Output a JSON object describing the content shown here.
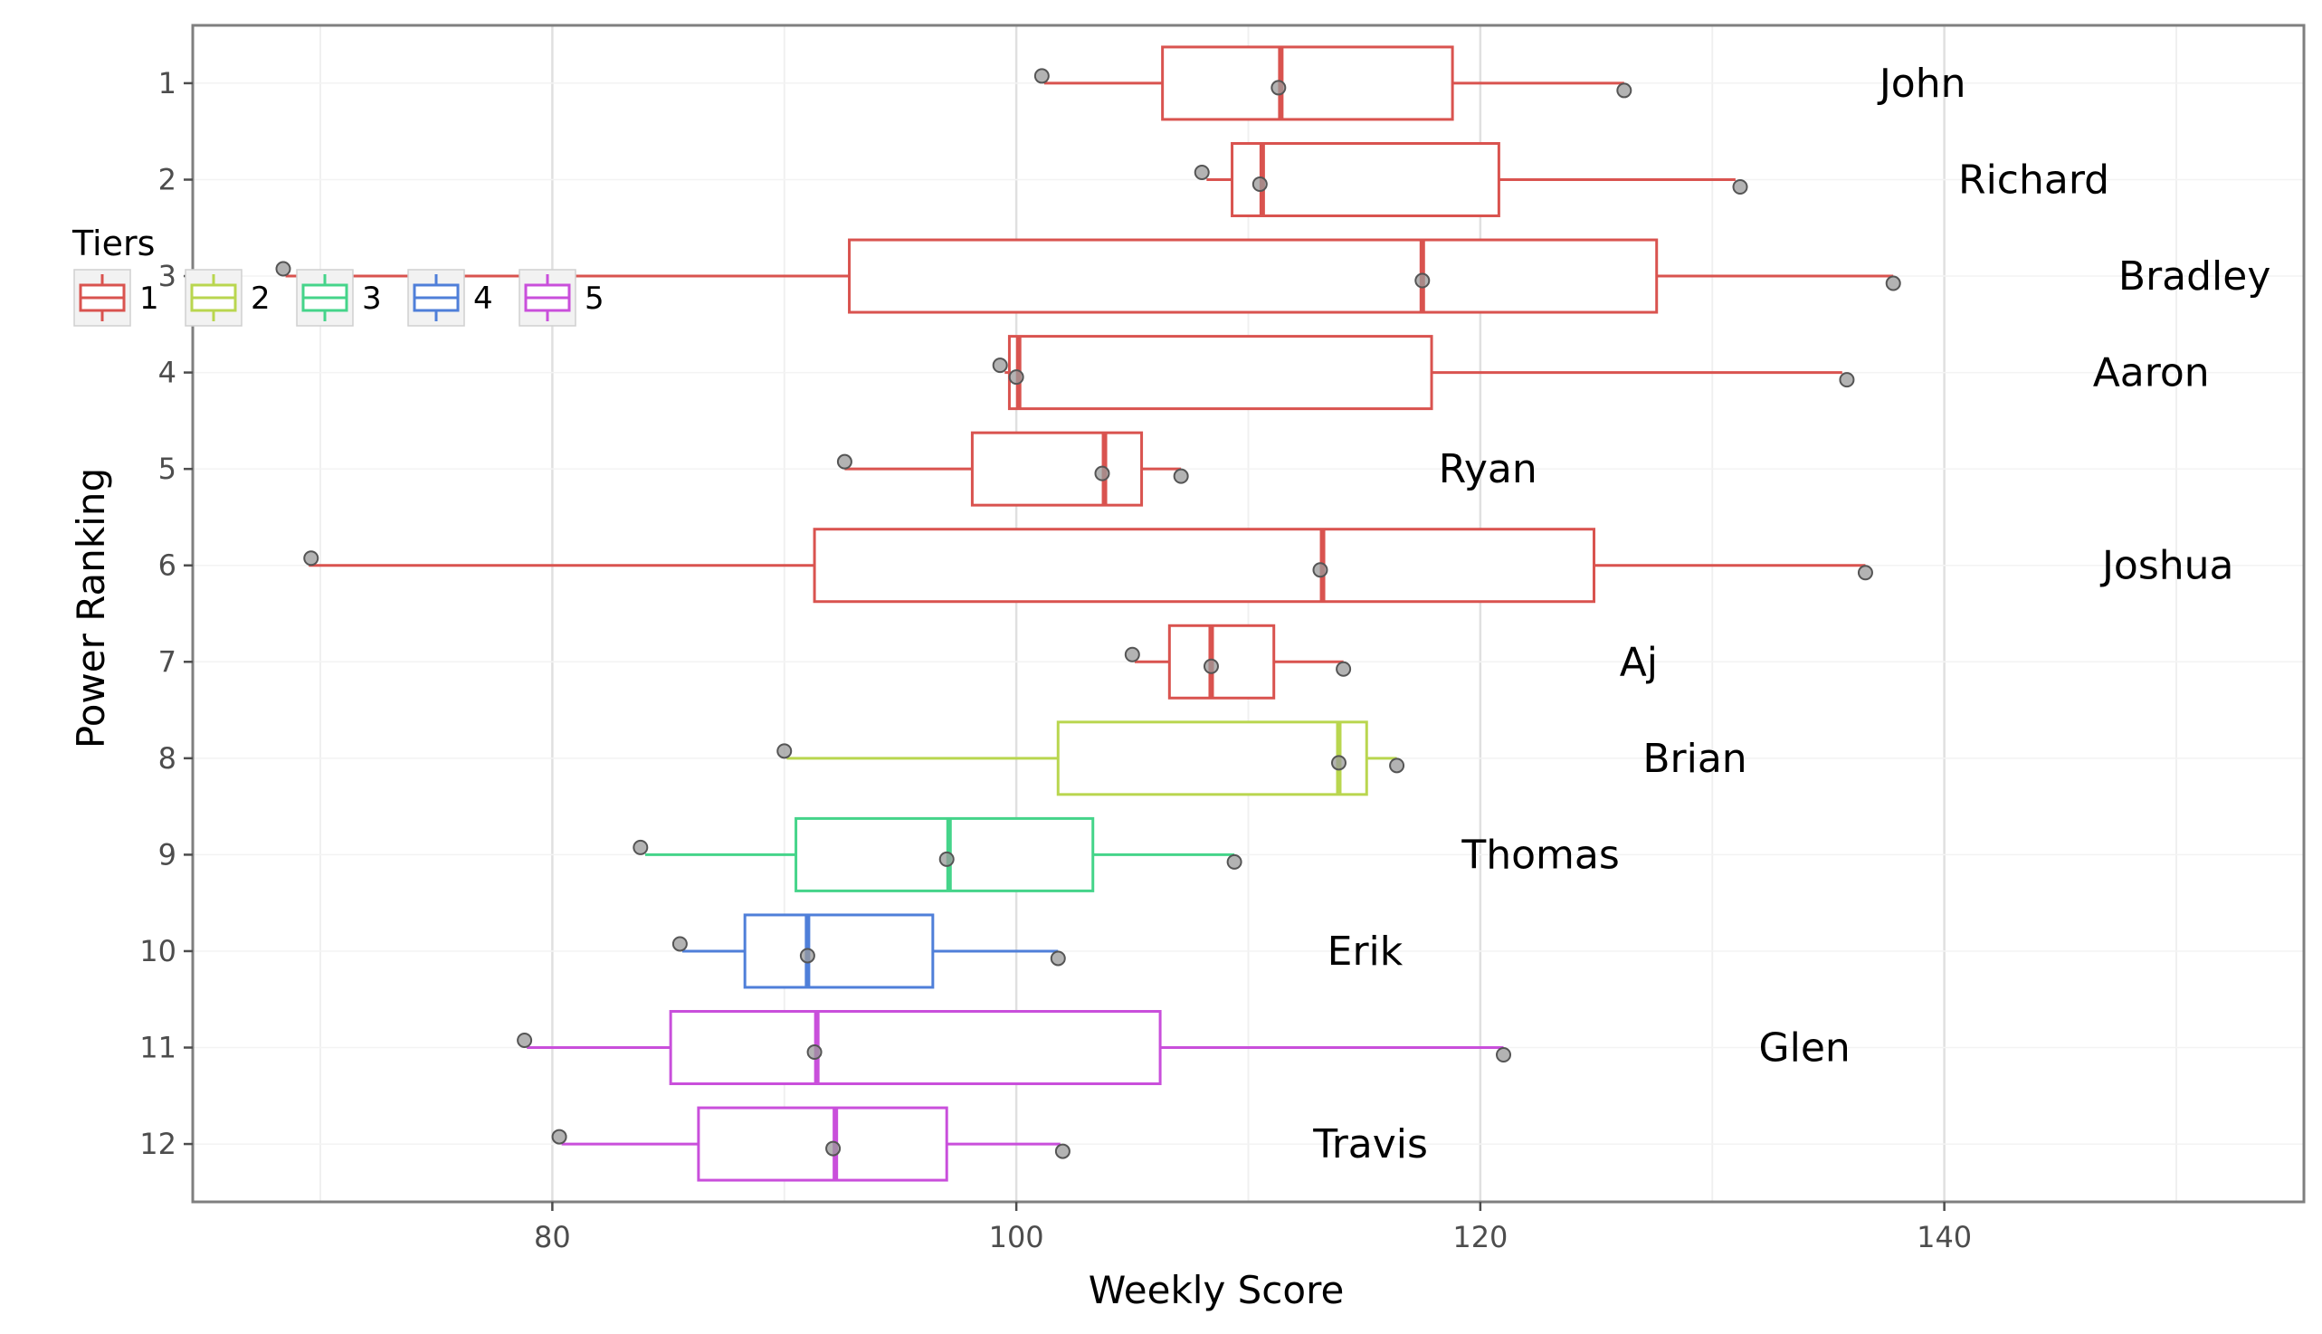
{
  "chart_data": {
    "type": "boxplot",
    "title": "",
    "xlabel": "Weekly Score",
    "ylabel": "Power Ranking",
    "xlim": [
      64.5,
      155.5
    ],
    "ylim": [
      0.4,
      12.6
    ],
    "x_ticks": [
      80,
      100,
      120,
      140
    ],
    "x_minor_ticks": [
      70,
      90,
      110,
      130,
      150
    ],
    "y_ticks": [
      1,
      2,
      3,
      4,
      5,
      6,
      7,
      8,
      9,
      10,
      11,
      12
    ],
    "grid": true,
    "legend": {
      "title": "Tiers",
      "position": "top-left",
      "entries": [
        {
          "label": "1",
          "color": "#d9534f"
        },
        {
          "label": "2",
          "color": "#b9d64f"
        },
        {
          "label": "3",
          "color": "#45d48a"
        },
        {
          "label": "4",
          "color": "#4f7fd9"
        },
        {
          "label": "5",
          "color": "#c94fdb"
        }
      ]
    },
    "series": [
      {
        "rank": 1,
        "label": "John",
        "tier": "1",
        "min": 101.2,
        "q1": 106.3,
        "median": 111.4,
        "q3": 118.8,
        "max": 126.2,
        "points": [
          101.1,
          111.3,
          126.2
        ],
        "label_x": 137.2
      },
      {
        "rank": 2,
        "label": "Richard",
        "tier": "1",
        "min": 108.2,
        "q1": 109.3,
        "median": 110.6,
        "q3": 120.8,
        "max": 131.0,
        "points": [
          108.0,
          110.5,
          131.2
        ],
        "label_x": 140.6
      },
      {
        "rank": 3,
        "label": "Bradley",
        "tier": "1",
        "min": 68.5,
        "q1": 92.8,
        "median": 117.5,
        "q3": 127.6,
        "max": 137.8,
        "points": [
          68.4,
          117.5,
          137.8
        ],
        "label_x": 147.5
      },
      {
        "rank": 4,
        "label": "Aaron",
        "tier": "1",
        "min": 99.5,
        "q1": 99.7,
        "median": 100.1,
        "q3": 117.9,
        "max": 135.6,
        "points": [
          99.3,
          100.0,
          135.8
        ],
        "label_x": 146.4
      },
      {
        "rank": 5,
        "label": "Ryan",
        "tier": "1",
        "min": 92.6,
        "q1": 98.1,
        "median": 103.8,
        "q3": 105.4,
        "max": 107.1,
        "points": [
          92.6,
          103.7,
          107.1
        ],
        "label_x": 118.2
      },
      {
        "rank": 6,
        "label": "Joshua",
        "tier": "1",
        "min": 69.5,
        "q1": 91.3,
        "median": 113.2,
        "q3": 124.9,
        "max": 136.6,
        "points": [
          69.6,
          113.1,
          136.6
        ],
        "label_x": 146.8
      },
      {
        "rank": 7,
        "label": "Aj",
        "tier": "1",
        "min": 105.1,
        "q1": 106.6,
        "median": 108.4,
        "q3": 111.1,
        "max": 114.1,
        "points": [
          105.0,
          108.4,
          114.1
        ],
        "label_x": 126.0
      },
      {
        "rank": 8,
        "label": "Brian",
        "tier": "2",
        "min": 90.1,
        "q1": 101.8,
        "median": 113.9,
        "q3": 115.1,
        "max": 116.4,
        "points": [
          90.0,
          113.9,
          116.4
        ],
        "label_x": 127.0
      },
      {
        "rank": 9,
        "label": "Thomas",
        "tier": "3",
        "min": 84.0,
        "q1": 90.5,
        "median": 97.1,
        "q3": 103.3,
        "max": 109.4,
        "points": [
          83.8,
          97.0,
          109.4
        ],
        "label_x": 119.2
      },
      {
        "rank": 10,
        "label": "Erik",
        "tier": "4",
        "min": 85.6,
        "q1": 88.3,
        "median": 91.0,
        "q3": 96.4,
        "max": 101.8,
        "points": [
          85.5,
          91.0,
          101.8
        ],
        "label_x": 113.4
      },
      {
        "rank": 11,
        "label": "Glen",
        "tier": "5",
        "min": 78.9,
        "q1": 85.1,
        "median": 91.4,
        "q3": 106.2,
        "max": 121.0,
        "points": [
          78.8,
          91.3,
          121.0
        ],
        "label_x": 132.0
      },
      {
        "rank": 12,
        "label": "Travis",
        "tier": "5",
        "min": 80.4,
        "q1": 86.3,
        "median": 92.2,
        "q3": 97.0,
        "max": 101.9,
        "points": [
          80.3,
          92.1,
          102.0
        ],
        "label_x": 112.8
      }
    ]
  }
}
